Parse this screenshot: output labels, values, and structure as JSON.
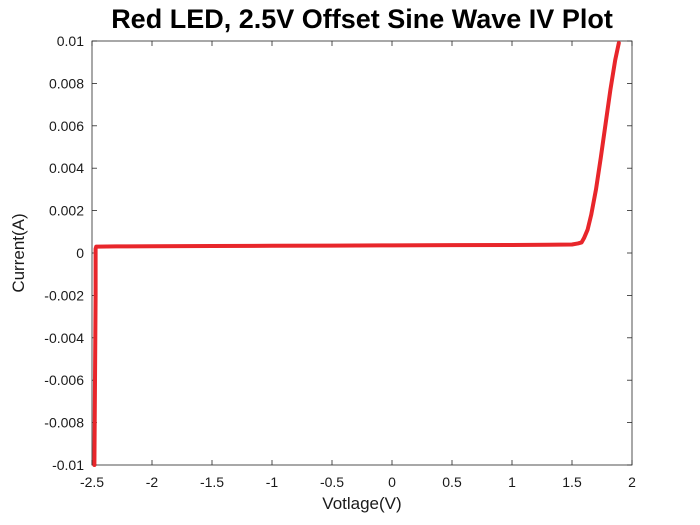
{
  "chart_data": {
    "type": "line",
    "title": "Red LED, 2.5V Offset Sine Wave IV Plot",
    "xlabel": "Votlage(V)",
    "ylabel": "Current(A)",
    "xlim": [
      -2.5,
      2
    ],
    "ylim": [
      -0.01,
      0.01
    ],
    "xticks": [
      -2.5,
      -2,
      -1.5,
      -1,
      -0.5,
      0,
      0.5,
      1,
      1.5,
      2
    ],
    "xtick_labels": [
      "-2.5",
      "-2",
      "-1.5",
      "-1",
      "-0.5",
      "0",
      "0.5",
      "1",
      "1.5",
      "2"
    ],
    "yticks": [
      -0.01,
      -0.008,
      -0.006,
      -0.004,
      -0.002,
      0,
      0.002,
      0.004,
      0.006,
      0.008,
      0.01
    ],
    "ytick_labels": [
      "-0.01",
      "-0.008",
      "-0.006",
      "-0.004",
      "-0.002",
      "0",
      "0.002",
      "0.004",
      "0.006",
      "0.008",
      "0.01"
    ],
    "grid": false,
    "series": [
      {
        "color": "#e8262b",
        "x": [
          -2.48,
          -2.475,
          -2.47,
          -2.47,
          -2.465,
          -2.45,
          -2.3,
          -2.0,
          -1.5,
          -1.0,
          -0.5,
          0.0,
          0.5,
          1.0,
          1.3,
          1.5,
          1.55,
          1.58,
          1.6,
          1.63,
          1.66,
          1.7,
          1.74,
          1.78,
          1.82,
          1.86,
          1.89
        ],
        "y": [
          -0.01,
          -0.006,
          -0.002,
          0.0002,
          0.0003,
          0.0003,
          0.00031,
          0.00032,
          0.00033,
          0.00034,
          0.00035,
          0.00036,
          0.00037,
          0.00038,
          0.00039,
          0.0004,
          0.00045,
          0.0005,
          0.0007,
          0.0011,
          0.0018,
          0.003,
          0.0045,
          0.0061,
          0.0077,
          0.0091,
          0.0099
        ]
      }
    ]
  }
}
